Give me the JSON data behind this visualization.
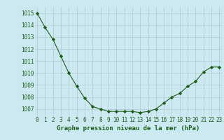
{
  "x": [
    0,
    1,
    2,
    3,
    4,
    5,
    6,
    7,
    8,
    9,
    10,
    11,
    12,
    13,
    14,
    15,
    16,
    17,
    18,
    19,
    20,
    21,
    22,
    23
  ],
  "y": [
    1015.0,
    1013.8,
    1012.8,
    1011.4,
    1010.0,
    1008.9,
    1007.9,
    1007.2,
    1007.0,
    1006.8,
    1006.8,
    1006.8,
    1006.8,
    1006.7,
    1006.8,
    1007.0,
    1007.5,
    1008.0,
    1008.3,
    1008.9,
    1009.3,
    1010.1,
    1010.5,
    1010.5
  ],
  "line_color": "#1a5c1a",
  "marker": "D",
  "marker_size": 2.2,
  "bg_color": "#cce8f0",
  "grid_color": "#b0c8d0",
  "xlabel": "Graphe pression niveau de la mer (hPa)",
  "xlabel_fontsize": 6.5,
  "ylabel_ticks": [
    1007,
    1008,
    1009,
    1010,
    1011,
    1012,
    1013,
    1014,
    1015
  ],
  "ylim": [
    1006.4,
    1015.5
  ],
  "xlim": [
    -0.3,
    23.3
  ],
  "tick_fontsize": 5.5,
  "xtick_labels": [
    "0",
    "1",
    "2",
    "3",
    "4",
    "5",
    "6",
    "7",
    "8",
    "9",
    "10",
    "11",
    "12",
    "13",
    "14",
    "15",
    "16",
    "17",
    "18",
    "19",
    "20",
    "21",
    "22",
    "23"
  ]
}
